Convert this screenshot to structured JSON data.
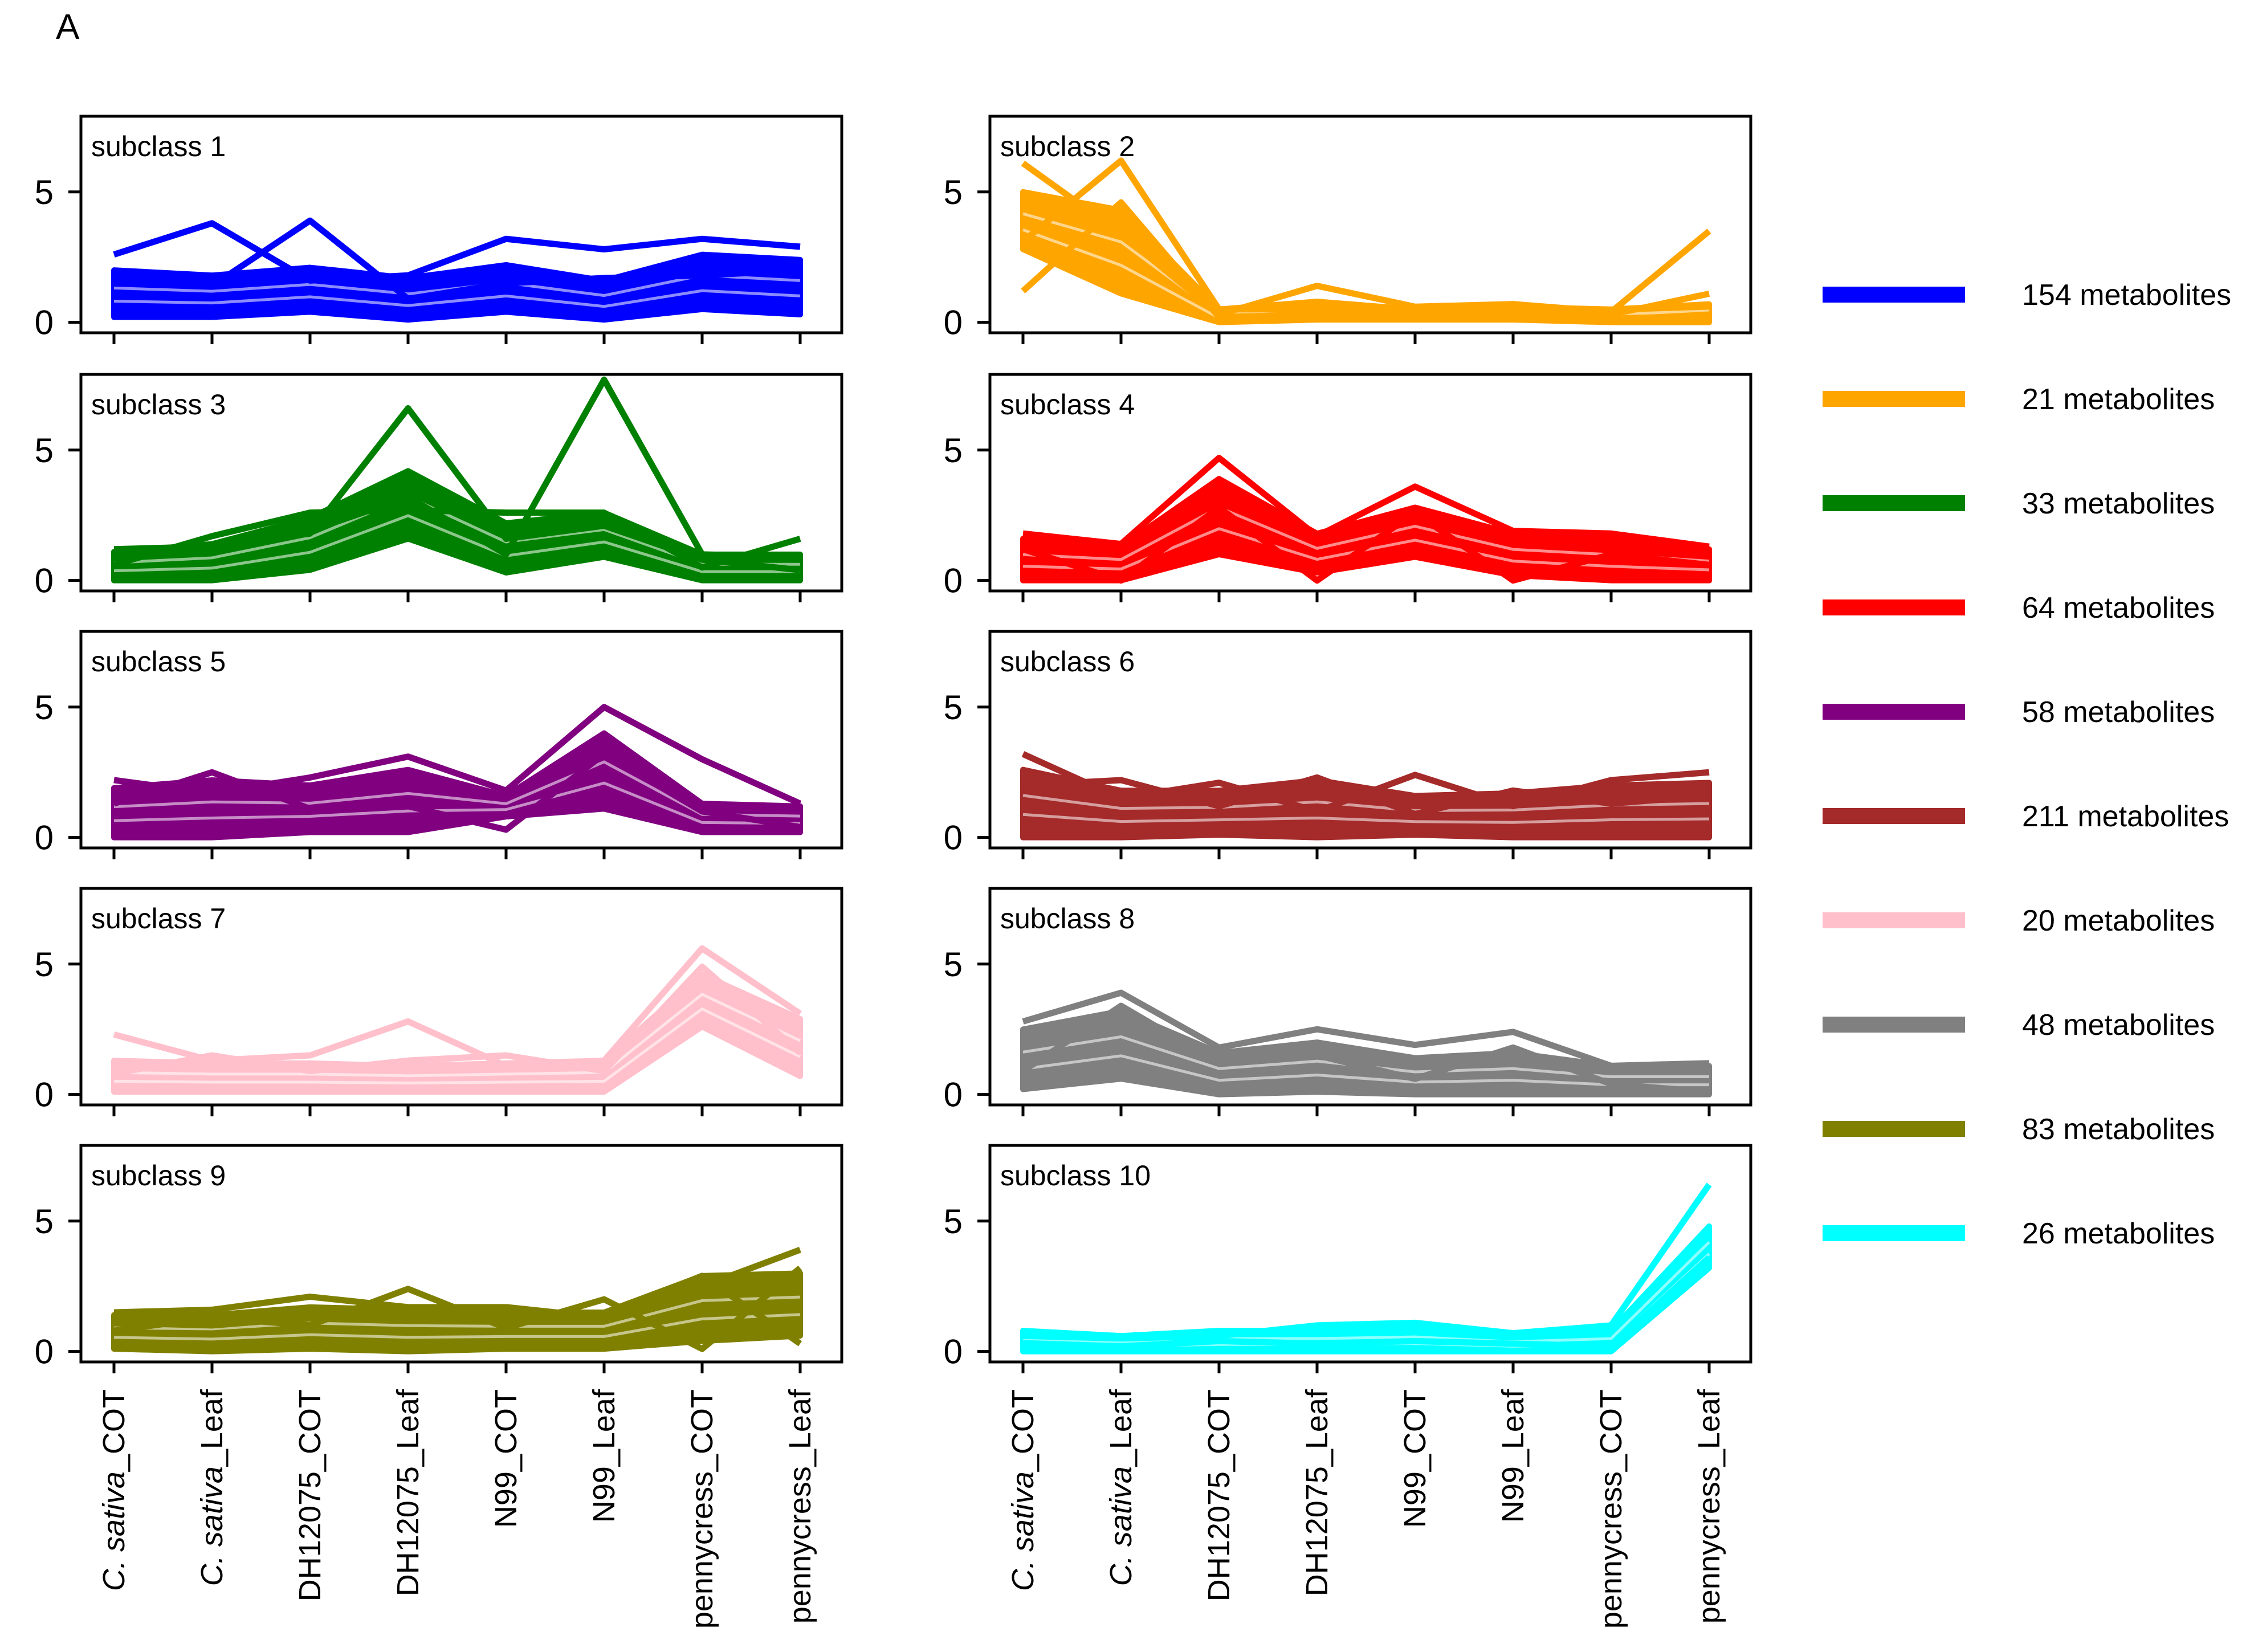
{
  "figure_label": "A",
  "chart_data": {
    "type": "line",
    "categories": [
      {
        "italic": "C. sativa",
        "rest": "_COT"
      },
      {
        "italic": "C. sativa",
        "rest": "_Leaf"
      },
      {
        "italic": "",
        "rest": "DH12075_COT"
      },
      {
        "italic": "",
        "rest": "DH12075_Leaf"
      },
      {
        "italic": "",
        "rest": "N99_COT"
      },
      {
        "italic": "",
        "rest": "N99_Leaf"
      },
      {
        "italic": "",
        "rest": "pennycress_COT"
      },
      {
        "italic": "",
        "rest": "pennycress_Leaf"
      }
    ],
    "ylim": [
      -0.4,
      7.9
    ],
    "yticks": [
      0,
      5
    ],
    "panels": [
      {
        "title": "subclass 1",
        "color": "#0000ff",
        "legend": "154 metabolites",
        "low": [
          0.2,
          0.2,
          0.4,
          0.1,
          0.4,
          0.1,
          0.5,
          0.3
        ],
        "high": [
          2.0,
          1.8,
          2.1,
          1.7,
          2.2,
          1.6,
          2.6,
          2.4
        ],
        "extra": [
          [
            2.6,
            3.8,
            1.6,
            1.8,
            3.2,
            2.8,
            3.2,
            2.9
          ],
          [
            1.8,
            1.4,
            3.9,
            0.9,
            1.5,
            1.7,
            1.8,
            2.0
          ]
        ]
      },
      {
        "title": "subclass 2",
        "color": "#ffa500",
        "legend": "21 metabolites",
        "low": [
          2.8,
          1.1,
          0.0,
          0.1,
          0.1,
          0.1,
          0.0,
          0.0
        ],
        "high": [
          5.0,
          4.3,
          0.5,
          0.8,
          0.5,
          0.6,
          0.5,
          0.7
        ],
        "extra": [
          [
            6.1,
            3.4,
            0.3,
            1.4,
            0.6,
            0.7,
            0.4,
            3.5
          ],
          [
            3.1,
            6.2,
            0.5,
            0.5,
            0.4,
            0.5,
            0.3,
            1.1
          ],
          [
            1.2,
            4.6,
            0.2,
            0.3,
            0.3,
            0.3,
            0.1,
            0.3
          ]
        ]
      },
      {
        "title": "subclass 3",
        "color": "#008000",
        "legend": "33 metabolites",
        "low": [
          0.0,
          0.0,
          0.4,
          1.6,
          0.3,
          0.9,
          0.0,
          0.0
        ],
        "high": [
          1.1,
          1.4,
          2.4,
          4.2,
          2.2,
          2.6,
          1.0,
          1.0
        ],
        "extra": [
          [
            1.2,
            1.3,
            1.8,
            6.6,
            1.6,
            2.1,
            0.8,
            0.4
          ],
          [
            0.9,
            1.1,
            1.9,
            3.2,
            1.0,
            7.7,
            1.0,
            0.9
          ],
          [
            0.6,
            1.7,
            2.6,
            2.7,
            2.6,
            2.6,
            0.5,
            1.6
          ]
        ]
      },
      {
        "title": "subclass 4",
        "color": "#ff0000",
        "legend": "64 metabolites",
        "low": [
          0.0,
          0.0,
          1.0,
          0.3,
          0.9,
          0.2,
          0.0,
          0.0
        ],
        "high": [
          1.6,
          1.3,
          3.9,
          1.8,
          2.8,
          1.8,
          1.6,
          1.2
        ],
        "extra": [
          [
            1.8,
            1.4,
            4.7,
            1.7,
            3.6,
            1.9,
            1.8,
            1.3
          ],
          [
            1.2,
            0.0,
            2.8,
            0.0,
            2.6,
            0.0,
            1.0,
            0.6
          ]
        ]
      },
      {
        "title": "subclass 5",
        "color": "#800080",
        "legend": "58 metabolites",
        "low": [
          0.0,
          0.0,
          0.2,
          0.2,
          0.8,
          1.1,
          0.2,
          0.2
        ],
        "high": [
          1.9,
          2.2,
          2.0,
          2.6,
          1.6,
          4.0,
          1.3,
          1.2
        ],
        "extra": [
          [
            2.2,
            1.7,
            2.3,
            3.1,
            1.8,
            5.0,
            3.0,
            1.3
          ],
          [
            1.3,
            2.5,
            1.1,
            1.2,
            0.3,
            3.2,
            1.0,
            0.4
          ]
        ]
      },
      {
        "title": "subclass 6",
        "color": "#a52a2a",
        "legend": "211 metabolites",
        "low": [
          0.0,
          0.0,
          0.1,
          0.0,
          0.1,
          0.0,
          0.0,
          0.0
        ],
        "high": [
          2.6,
          1.8,
          1.8,
          2.2,
          1.6,
          1.7,
          2.0,
          2.1
        ],
        "extra": [
          [
            3.2,
            1.5,
            2.1,
            1.0,
            2.4,
            1.2,
            2.2,
            2.5
          ],
          [
            2.0,
            2.2,
            1.2,
            2.3,
            0.9,
            1.8,
            1.3,
            1.6
          ]
        ]
      },
      {
        "title": "subclass 7",
        "color": "#ffc0cb",
        "legend": "20 metabolites",
        "low": [
          0.1,
          0.1,
          0.1,
          0.1,
          0.1,
          0.1,
          2.6,
          0.7
        ],
        "high": [
          1.3,
          1.2,
          1.2,
          1.1,
          1.2,
          1.3,
          4.6,
          2.9
        ],
        "extra": [
          [
            2.3,
            1.3,
            1.5,
            2.8,
            1.1,
            1.3,
            5.6,
            3.1
          ],
          [
            0.8,
            1.5,
            0.9,
            1.3,
            1.5,
            0.9,
            4.9,
            1.6
          ]
        ]
      },
      {
        "title": "subclass 8",
        "color": "#808080",
        "legend": "48 metabolites",
        "low": [
          0.2,
          0.6,
          0.0,
          0.1,
          0.0,
          0.0,
          0.0,
          0.0
        ],
        "high": [
          2.5,
          3.2,
          1.6,
          2.0,
          1.4,
          1.6,
          1.1,
          1.1
        ],
        "extra": [
          [
            2.8,
            3.9,
            1.8,
            2.5,
            1.9,
            2.4,
            1.1,
            1.2
          ],
          [
            0.9,
            3.4,
            1.2,
            1.5,
            0.6,
            1.8,
            0.4,
            0.1
          ]
        ]
      },
      {
        "title": "subclass 9",
        "color": "#808000",
        "legend": "83 metabolites",
        "low": [
          0.1,
          0.0,
          0.1,
          0.0,
          0.1,
          0.1,
          0.4,
          0.6
        ],
        "high": [
          1.4,
          1.4,
          1.7,
          1.6,
          1.5,
          1.5,
          2.9,
          3.0
        ],
        "extra": [
          [
            1.5,
            1.6,
            2.1,
            1.7,
            1.7,
            1.3,
            2.5,
            3.9
          ],
          [
            0.8,
            1.3,
            1.0,
            2.4,
            0.9,
            2.0,
            0.1,
            3.2
          ],
          [
            1.1,
            1.0,
            1.3,
            1.4,
            1.2,
            1.4,
            2.9,
            0.3
          ]
        ]
      },
      {
        "title": "subclass 10",
        "color": "#00ffff",
        "legend": "26 metabolites",
        "low": [
          0.0,
          0.0,
          0.0,
          0.0,
          0.0,
          0.0,
          0.0,
          3.2
        ],
        "high": [
          0.8,
          0.6,
          0.8,
          0.8,
          0.9,
          0.6,
          0.8,
          4.8
        ],
        "extra": [
          [
            0.6,
            0.5,
            0.6,
            1.0,
            1.1,
            0.7,
            1.0,
            6.4
          ],
          [
            0.3,
            0.2,
            0.4,
            0.3,
            0.4,
            0.3,
            0.2,
            3.6
          ]
        ]
      }
    ]
  }
}
